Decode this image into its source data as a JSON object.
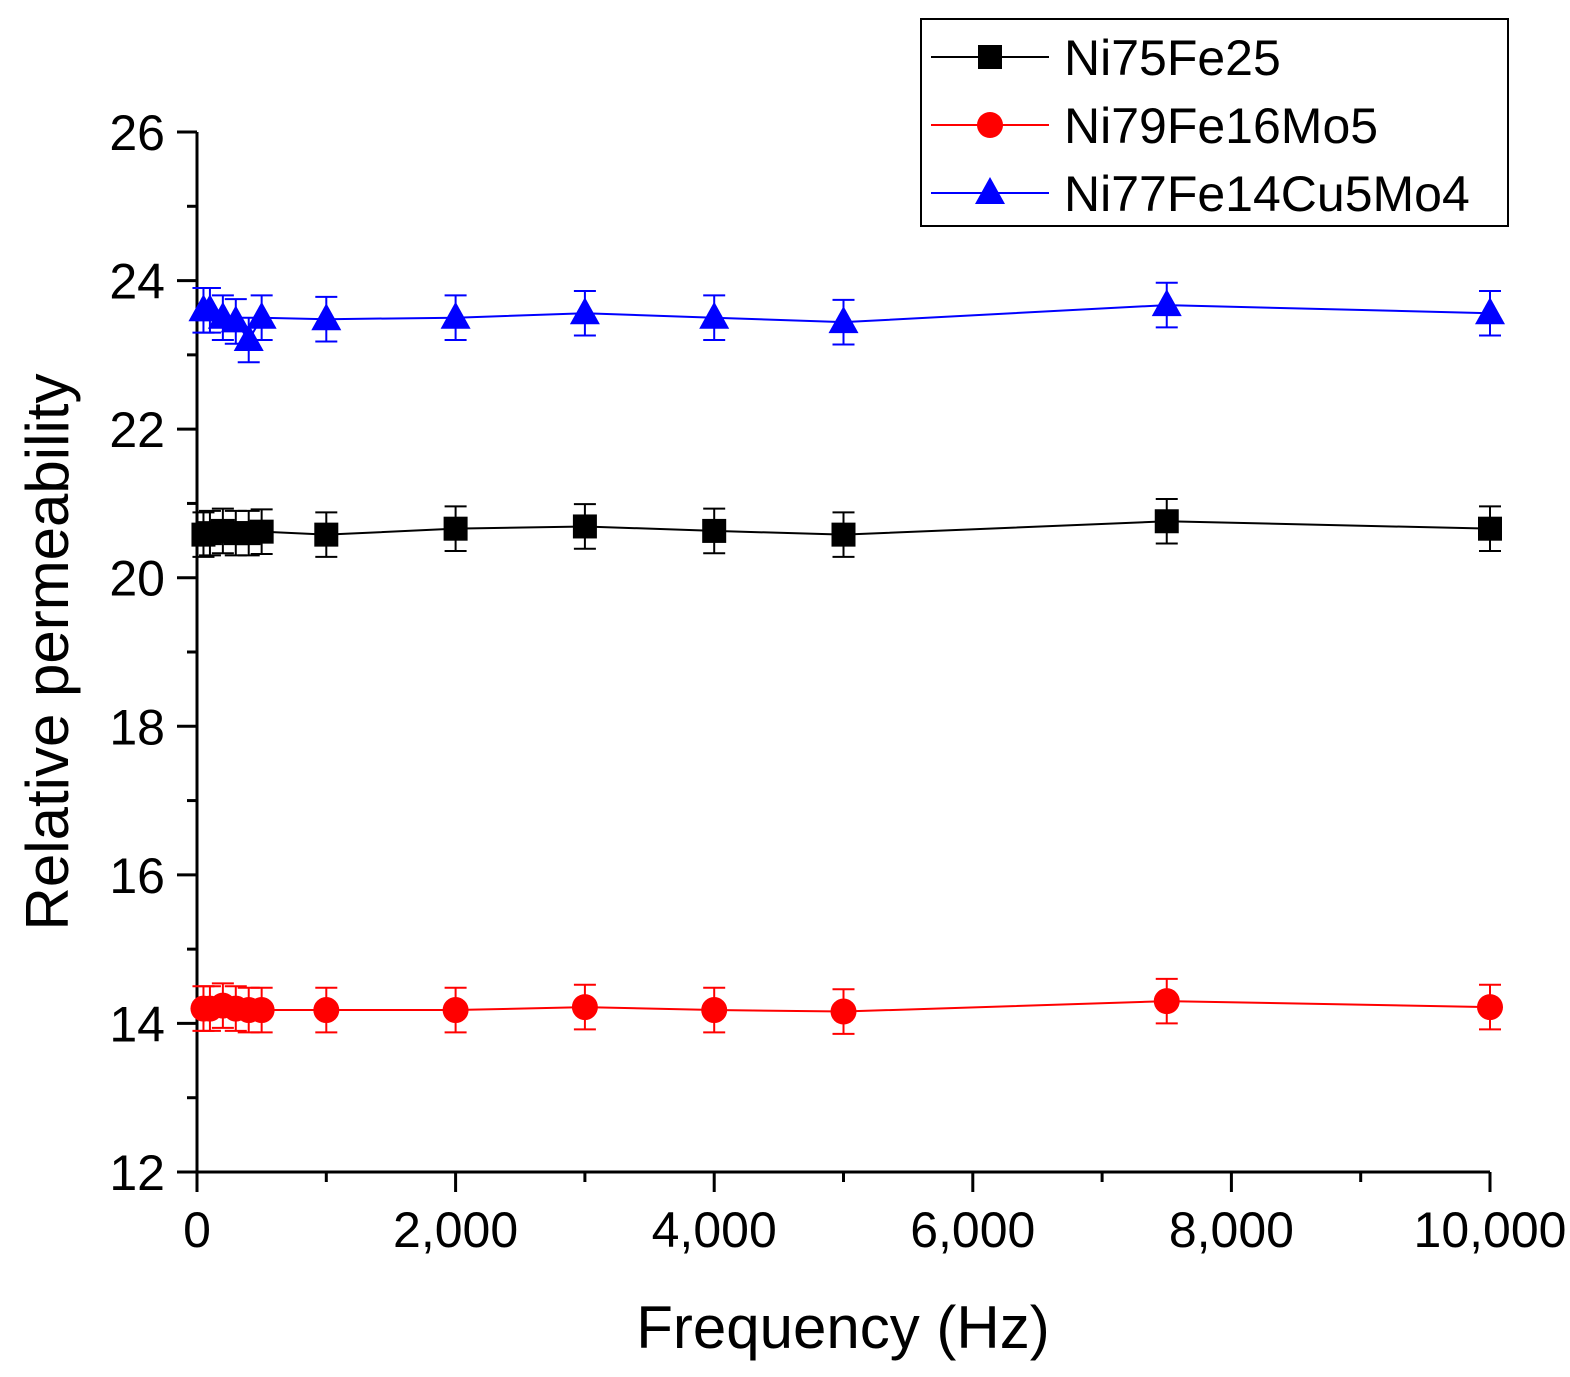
{
  "chart_data": {
    "type": "line",
    "xlabel": "Frequency (Hz)",
    "ylabel": "Relative permeability",
    "xlim": [
      0,
      10000
    ],
    "ylim": [
      12,
      26
    ],
    "x_ticks": [
      0,
      2000,
      4000,
      6000,
      8000,
      10000
    ],
    "x_tick_labels": [
      "0",
      "2,000",
      "4,000",
      "6,000",
      "8,000",
      "10,000"
    ],
    "y_ticks": [
      12,
      14,
      16,
      18,
      20,
      22,
      24,
      26
    ],
    "y_tick_labels": [
      "12",
      "14",
      "16",
      "18",
      "20",
      "22",
      "24",
      "26"
    ],
    "grid": false,
    "legend_position": "top-right",
    "error_bar": 0.3,
    "series": [
      {
        "name": "Ni75Fe25",
        "color": "#000000",
        "marker": "square",
        "x": [
          50,
          100,
          200,
          300,
          400,
          500,
          1000,
          2000,
          3000,
          4000,
          5000,
          7500,
          10000
        ],
        "y": [
          20.58,
          20.6,
          20.63,
          20.6,
          20.6,
          20.62,
          20.58,
          20.66,
          20.69,
          20.63,
          20.58,
          20.76,
          20.66
        ]
      },
      {
        "name": "Ni79Fe16Mo5",
        "color": "#ff0000",
        "marker": "circle",
        "x": [
          50,
          100,
          200,
          300,
          400,
          500,
          1000,
          2000,
          3000,
          4000,
          5000,
          7500,
          10000
        ],
        "y": [
          14.2,
          14.2,
          14.24,
          14.2,
          14.18,
          14.18,
          14.18,
          14.18,
          14.22,
          14.18,
          14.16,
          14.3,
          14.22
        ]
      },
      {
        "name": "Ni77Fe14Cu5Mo4",
        "color": "#0000ff",
        "marker": "triangle",
        "x": [
          50,
          100,
          200,
          300,
          400,
          500,
          1000,
          2000,
          3000,
          4000,
          5000,
          7500,
          10000
        ],
        "y": [
          23.6,
          23.6,
          23.5,
          23.45,
          23.2,
          23.5,
          23.48,
          23.5,
          23.56,
          23.5,
          23.44,
          23.67,
          23.56
        ]
      }
    ]
  }
}
